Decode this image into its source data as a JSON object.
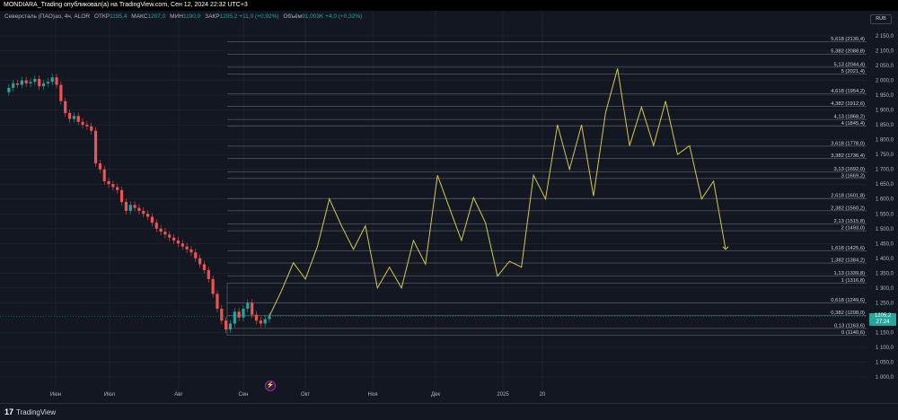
{
  "header": {
    "title": "MONDIARA_Trading опубликовал(а) на TradingView.com, Сен 12, 2024 22:32 UTC+3"
  },
  "legend": {
    "symbol": "Северсталь (ПАО)ао, 4ч, ALOR",
    "open_label": "ОТКР",
    "open": "1195,4",
    "high_label": "МАКС",
    "high": "1207,0",
    "low_label": "МИН",
    "low": "1190,0",
    "close_label": "ЗАКР",
    "close": "1205,2",
    "change": "+11,0 (+0,92%)",
    "volume_label": "Объём",
    "volume": "91,003K",
    "volume_change": "+4,0 (+0,32%)"
  },
  "currency": "RUB",
  "price_label": {
    "price": "1205,2",
    "timer": "27:24"
  },
  "footer": {
    "logo": "TradingView"
  },
  "colors": {
    "background": "#131722",
    "grid": "#2a2e39",
    "up": "#26a69a",
    "down": "#ef5350",
    "projection": "#d4c84a",
    "fib_line": "#787b86"
  },
  "chart_data": {
    "type": "line",
    "ylim": [
      980,
      2170
    ],
    "y_ticks": [
      "2 150,0",
      "2 100,0",
      "2 050,0",
      "2 000,0",
      "1 950,0",
      "1 900,0",
      "1 850,0",
      "1 800,0",
      "1 750,0",
      "1 700,0",
      "1 650,0",
      "1 600,0",
      "1 550,0",
      "1 500,0",
      "1 450,0",
      "1 400,0",
      "1 350,0",
      "1 300,0",
      "1 250,0",
      "1 150,0",
      "1 100,0",
      "1 050,0",
      "1 000,0"
    ],
    "y_tick_values": [
      2150,
      2100,
      2050,
      2000,
      1950,
      1900,
      1850,
      1800,
      1750,
      1700,
      1650,
      1600,
      1550,
      1500,
      1450,
      1400,
      1350,
      1300,
      1250,
      1150,
      1100,
      1050,
      1000
    ],
    "x_labels": [
      "Июн",
      "Июл",
      "Авг",
      "Сен",
      "Окт",
      "Ноя",
      "Дек",
      "2025",
      "20"
    ],
    "fib_levels": [
      {
        "label": "5,618 (2130,4)",
        "value": 2130.4
      },
      {
        "label": "5,382 (2088,8)",
        "value": 2088.8
      },
      {
        "label": "5,13 (2044,4)",
        "value": 2044.4
      },
      {
        "label": "5 (2021,4)",
        "value": 2021.4
      },
      {
        "label": "4,618 (1954,2)",
        "value": 1954.2
      },
      {
        "label": "4,382 (1912,6)",
        "value": 1912.6
      },
      {
        "label": "4,13 (1868,2)",
        "value": 1868.2
      },
      {
        "label": "4 (1845,4)",
        "value": 1845.4
      },
      {
        "label": "3,618 (1778,0)",
        "value": 1778.0
      },
      {
        "label": "3,382 (1736,4)",
        "value": 1736.4
      },
      {
        "label": "3,13 (1692,0)",
        "value": 1692.0
      },
      {
        "label": "3 (1669,2)",
        "value": 1669.2
      },
      {
        "label": "2,618 (1601,8)",
        "value": 1601.8
      },
      {
        "label": "2,382 (1560,2)",
        "value": 1560.2
      },
      {
        "label": "2,13 (1515,8)",
        "value": 1515.8
      },
      {
        "label": "2 (1493,0)",
        "value": 1493.0
      },
      {
        "label": "1,618 (1425,6)",
        "value": 1425.6
      },
      {
        "label": "1,382 (1384,2)",
        "value": 1384.2
      },
      {
        "label": "1,13 (1339,8)",
        "value": 1339.8
      },
      {
        "label": "1 (1316,8)",
        "value": 1316.8
      },
      {
        "label": "0,618 (1249,6)",
        "value": 1249.6
      },
      {
        "label": "0,382 (1208,0)",
        "value": 1208.0
      },
      {
        "label": "0,13 (1163,6)",
        "value": 1163.6
      },
      {
        "label": "0 (1140,6)",
        "value": 1140.6
      }
    ],
    "price_series": [
      1960,
      1975,
      1990,
      1985,
      2000,
      1990,
      1995,
      2005,
      1980,
      1990,
      1995,
      2010,
      1985,
      1930,
      1890,
      1870,
      1880,
      1860,
      1850,
      1845,
      1830,
      1720,
      1700,
      1660,
      1650,
      1640,
      1630,
      1590,
      1560,
      1580,
      1570,
      1560,
      1550,
      1540,
      1520,
      1500,
      1490,
      1480,
      1470,
      1460,
      1450,
      1440,
      1430,
      1420,
      1400,
      1380,
      1360,
      1330,
      1280,
      1230,
      1190,
      1160,
      1180,
      1220,
      1200,
      1230,
      1250,
      1210,
      1190,
      1180,
      1195,
      1205
    ],
    "projection_series": [
      1205,
      1290,
      1385,
      1330,
      1440,
      1600,
      1510,
      1430,
      1510,
      1300,
      1370,
      1300,
      1460,
      1380,
      1680,
      1570,
      1460,
      1605,
      1520,
      1340,
      1390,
      1370,
      1680,
      1600,
      1850,
      1700,
      1850,
      1610,
      1890,
      2040,
      1780,
      1910,
      1780,
      1930,
      1750,
      1780,
      1600,
      1660,
      1430
    ]
  }
}
